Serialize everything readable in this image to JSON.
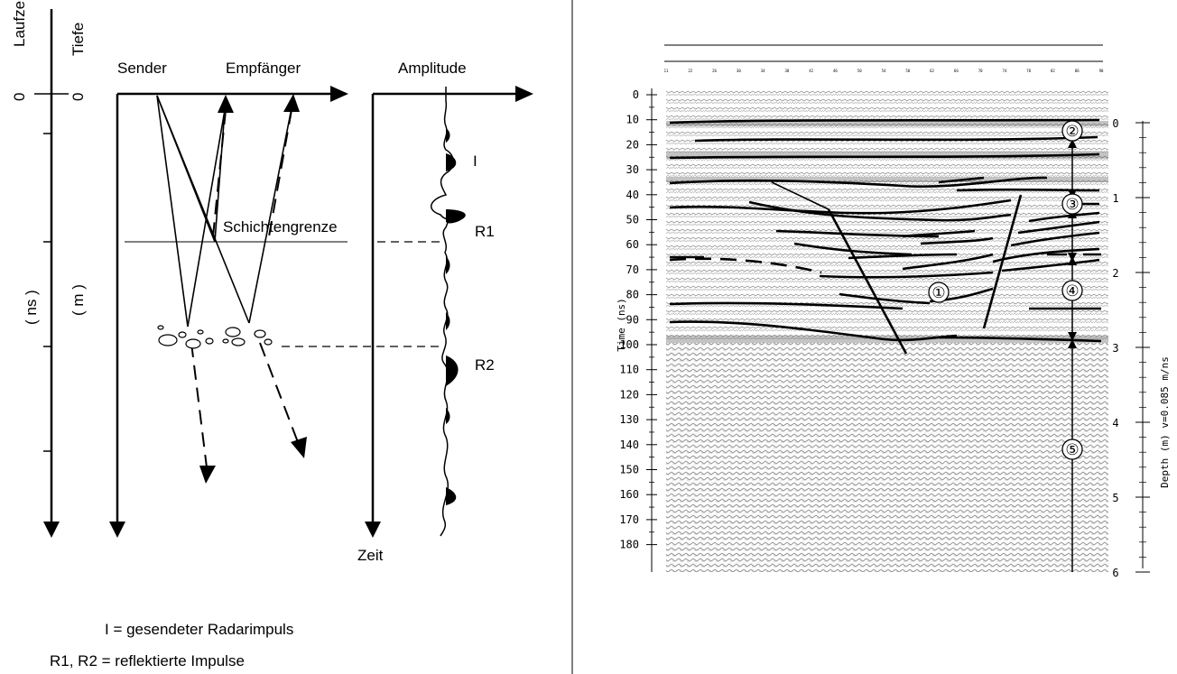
{
  "left": {
    "laufzeit": "Laufzeit",
    "tiefe": "Tiefe",
    "zero_time": "0",
    "zero_depth": "0",
    "unit_time": "( ns )",
    "unit_depth": "( m )",
    "sender": "Sender",
    "empfaenger": "Empfänger",
    "amplitude": "Amplitude",
    "schichtengrenze": "Schichtengrenze",
    "pulse_i": "I",
    "r1": "R1",
    "r2": "R2",
    "zeit": "Zeit",
    "legend1": "I = gesendeter Radarimpuls",
    "legend2": "R1, R2 = reflektierte Impulse"
  },
  "right": {
    "time_ticks": [
      "0",
      "10",
      "20",
      "30",
      "40",
      "50",
      "60",
      "70",
      "80",
      "90",
      "100",
      "110",
      "120",
      "130",
      "140",
      "150",
      "160",
      "170",
      "180"
    ],
    "time_axis_label": "Time (ns)",
    "depth_ticks": [
      "0",
      "1",
      "2",
      "3",
      "4",
      "5",
      "6"
    ],
    "depth_axis_label": "Depth (m) v=0.085 m/ns",
    "trace_numbers": [
      "11",
      "22",
      "26",
      "30",
      "34",
      "38",
      "42",
      "46",
      "50",
      "54",
      "58",
      "62",
      "66",
      "70",
      "74",
      "78",
      "82",
      "86",
      "90"
    ],
    "circles": [
      "①",
      "②",
      "③",
      "④",
      "⑤"
    ]
  },
  "colors": {
    "ink": "#000000",
    "gray": "#9a9a9a"
  }
}
